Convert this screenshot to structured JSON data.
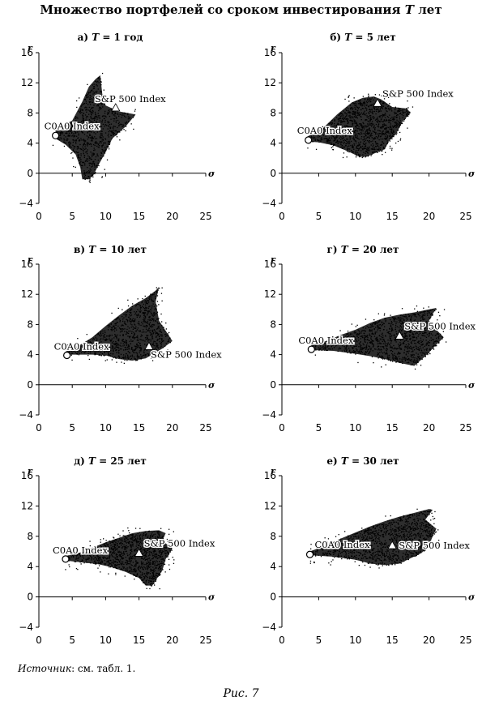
{
  "figure": {
    "title_prefix": "Множество портфелей со сроком инвестирования",
    "title_var": "T",
    "title_suffix": "лет",
    "source_label": "Источник",
    "source_text": ": см. табл. 1.",
    "caption": "Рис. 7"
  },
  "chart_data": [
    {
      "type": "scatter",
      "label": "а)",
      "eq": "= 1 год",
      "xlabel": "σ",
      "ylabel": "r",
      "xlim": [
        0,
        25
      ],
      "ylim": [
        -4,
        16
      ],
      "xticks": [
        0,
        5,
        10,
        15,
        20,
        25
      ],
      "yticks": [
        -4,
        0,
        4,
        8,
        12,
        16
      ],
      "cloud": {
        "tip": [
          2.5,
          5.0
        ],
        "hull": [
          [
            2.5,
            5.8
          ],
          [
            5,
            7
          ],
          [
            6.5,
            9.5
          ],
          [
            7.5,
            11.5
          ],
          [
            8.5,
            12.5
          ],
          [
            9.2,
            13
          ],
          [
            9.5,
            10.5
          ],
          [
            10,
            9
          ],
          [
            12,
            8.2
          ],
          [
            14.5,
            7.8
          ],
          [
            13,
            6.2
          ],
          [
            11,
            4.6
          ],
          [
            10,
            2.8
          ],
          [
            9,
            1.2
          ],
          [
            8.2,
            -0.2
          ],
          [
            7.5,
            -0.8
          ],
          [
            6.5,
            -0.8
          ],
          [
            6.2,
            0.8
          ],
          [
            5.5,
            2.5
          ],
          [
            4,
            3.8
          ],
          [
            2.5,
            4.6
          ]
        ]
      },
      "points": [
        {
          "label": "C0A0 Index",
          "x": 2.5,
          "y": 5.0,
          "marker": "circle",
          "text_pos": "above-left"
        },
        {
          "label": "S&P 500 Index",
          "x": 11.5,
          "y": 8.7,
          "marker": "triangle",
          "text_pos": "above"
        }
      ]
    },
    {
      "type": "scatter",
      "label": "б)",
      "eq": "= 5 лет",
      "xlabel": "σ",
      "ylabel": "r",
      "xlim": [
        0,
        25
      ],
      "ylim": [
        -4,
        16
      ],
      "xticks": [
        0,
        5,
        10,
        15,
        20,
        25
      ],
      "yticks": [
        -4,
        0,
        4,
        8,
        12,
        16
      ],
      "cloud": {
        "tip": [
          3.5,
          4.5
        ],
        "hull": [
          [
            3.5,
            4.9
          ],
          [
            5.5,
            5.9
          ],
          [
            7.5,
            7.8
          ],
          [
            9.5,
            9.4
          ],
          [
            11,
            10
          ],
          [
            12.5,
            10.2
          ],
          [
            13.5,
            9.8
          ],
          [
            15,
            8.8
          ],
          [
            17,
            8.6
          ],
          [
            17.5,
            8
          ],
          [
            16.5,
            7
          ],
          [
            15.5,
            5.2
          ],
          [
            14.5,
            4.2
          ],
          [
            14,
            3.2
          ],
          [
            11.5,
            2.2
          ],
          [
            10.5,
            2.2
          ],
          [
            9,
            2.9
          ],
          [
            7,
            3.7
          ],
          [
            5,
            4.1
          ],
          [
            3.5,
            4.2
          ]
        ]
      },
      "points": [
        {
          "label": "C0A0 Index",
          "x": 3.6,
          "y": 4.4,
          "marker": "circle",
          "text_pos": "above-left"
        },
        {
          "label": "S&P 500 Index",
          "x": 13.0,
          "y": 9.3,
          "marker": "triangle",
          "text_pos": "above-right"
        }
      ]
    },
    {
      "type": "scatter",
      "label": "в)",
      "eq": "= 10 лет",
      "xlabel": "σ",
      "ylabel": "r",
      "xlim": [
        0,
        25
      ],
      "ylim": [
        -4,
        16
      ],
      "xticks": [
        0,
        5,
        10,
        15,
        20,
        25
      ],
      "yticks": [
        -4,
        0,
        4,
        8,
        12,
        16
      ],
      "cloud": {
        "tip": [
          4.0,
          4.0
        ],
        "hull": [
          [
            4,
            4.4
          ],
          [
            6,
            5.2
          ],
          [
            8,
            6.3
          ],
          [
            10,
            7.8
          ],
          [
            12,
            9.2
          ],
          [
            14,
            10.5
          ],
          [
            16,
            11.5
          ],
          [
            17.5,
            12.5
          ],
          [
            18,
            13
          ],
          [
            17.5,
            11
          ],
          [
            18,
            8.5
          ],
          [
            19.5,
            6.5
          ],
          [
            20,
            5.8
          ],
          [
            18.5,
            4.8
          ],
          [
            16,
            3.5
          ],
          [
            14,
            3.2
          ],
          [
            12,
            3.4
          ],
          [
            10,
            3.9
          ],
          [
            8,
            4.0
          ],
          [
            4,
            4.0
          ]
        ]
      },
      "points": [
        {
          "label": "C0A0 Index",
          "x": 4.2,
          "y": 3.9,
          "marker": "circle",
          "text_pos": "above"
        },
        {
          "label": "S&P 500 Index",
          "x": 16.5,
          "y": 5.1,
          "marker": "triangle",
          "text_pos": "below-right"
        }
      ]
    },
    {
      "type": "scatter",
      "label": "г)",
      "eq": "= 20 лет",
      "xlabel": "σ",
      "ylabel": "r",
      "xlim": [
        0,
        25
      ],
      "ylim": [
        -4,
        16
      ],
      "xticks": [
        0,
        5,
        10,
        15,
        20,
        25
      ],
      "yticks": [
        -4,
        0,
        4,
        8,
        12,
        16
      ],
      "cloud": {
        "tip": [
          4.0,
          4.8
        ],
        "hull": [
          [
            4,
            5.3
          ],
          [
            6,
            5.8
          ],
          [
            8,
            6.6
          ],
          [
            10,
            7.3
          ],
          [
            12,
            8.2
          ],
          [
            14,
            8.9
          ],
          [
            16,
            9.3
          ],
          [
            18,
            9.6
          ],
          [
            20,
            10
          ],
          [
            21,
            10.2
          ],
          [
            20,
            8.5
          ],
          [
            21,
            7.3
          ],
          [
            22,
            6.3
          ],
          [
            21,
            5.3
          ],
          [
            19.5,
            3.8
          ],
          [
            18,
            2.5
          ],
          [
            16,
            2.9
          ],
          [
            14,
            3.4
          ],
          [
            12,
            3.8
          ],
          [
            10,
            4.1
          ],
          [
            7,
            4.5
          ],
          [
            4,
            4.6
          ]
        ]
      },
      "points": [
        {
          "label": "C0A0 Index",
          "x": 4.0,
          "y": 4.7,
          "marker": "circle",
          "text_pos": "above"
        },
        {
          "label": "S&P 500 Index",
          "x": 16.0,
          "y": 6.5,
          "marker": "triangle",
          "text_pos": "above-right"
        }
      ]
    },
    {
      "type": "scatter",
      "label": "д)",
      "eq": "= 25 лет",
      "xlabel": "σ",
      "ylabel": "r",
      "xlim": [
        0,
        25
      ],
      "ylim": [
        -4,
        16
      ],
      "xticks": [
        0,
        5,
        10,
        15,
        20,
        25
      ],
      "yticks": [
        -4,
        0,
        4,
        8,
        12,
        16
      ],
      "cloud": {
        "tip": [
          4.0,
          5.0
        ],
        "hull": [
          [
            4,
            5.4
          ],
          [
            6,
            5.8
          ],
          [
            8,
            6.5
          ],
          [
            10,
            7.2
          ],
          [
            12,
            7.8
          ],
          [
            14,
            8.4
          ],
          [
            16,
            8.7
          ],
          [
            18,
            8.8
          ],
          [
            19,
            8.4
          ],
          [
            18.5,
            7.4
          ],
          [
            20,
            6.4
          ],
          [
            19,
            5
          ],
          [
            18.5,
            3.5
          ],
          [
            17,
            1.5
          ],
          [
            16,
            1.5
          ],
          [
            15,
            2.5
          ],
          [
            13,
            3.3
          ],
          [
            11,
            3.9
          ],
          [
            9,
            4.3
          ],
          [
            6,
            4.6
          ],
          [
            4,
            4.8
          ]
        ]
      },
      "points": [
        {
          "label": "C0A0 Index",
          "x": 4.0,
          "y": 5.0,
          "marker": "circle",
          "text_pos": "above"
        },
        {
          "label": "S&P 500 Index",
          "x": 15.0,
          "y": 5.8,
          "marker": "triangle",
          "text_pos": "above-right"
        }
      ]
    },
    {
      "type": "scatter",
      "label": "е)",
      "eq": "= 30 лет",
      "xlabel": "σ",
      "ylabel": "r",
      "xlim": [
        0,
        25
      ],
      "ylim": [
        -4,
        16
      ],
      "xticks": [
        0,
        5,
        10,
        15,
        20,
        25
      ],
      "yticks": [
        -4,
        0,
        4,
        8,
        12,
        16
      ],
      "cloud": {
        "tip": [
          3.8,
          5.6
        ],
        "hull": [
          [
            3.8,
            6
          ],
          [
            6,
            6.8
          ],
          [
            8,
            7.7
          ],
          [
            10,
            8.5
          ],
          [
            12,
            9.3
          ],
          [
            14,
            10
          ],
          [
            16,
            10.6
          ],
          [
            18,
            11.1
          ],
          [
            20,
            11.6
          ],
          [
            20.5,
            11.5
          ],
          [
            19.5,
            10.2
          ],
          [
            21,
            9
          ],
          [
            20.5,
            8
          ],
          [
            20,
            6.8
          ],
          [
            19,
            5.8
          ],
          [
            16,
            4.4
          ],
          [
            14,
            4.2
          ],
          [
            12,
            4.4
          ],
          [
            10,
            4.9
          ],
          [
            7,
            5.3
          ],
          [
            3.8,
            5.5
          ]
        ]
      },
      "points": [
        {
          "label": "C0A0 Index",
          "x": 3.8,
          "y": 5.6,
          "marker": "circle",
          "text_pos": "above-right"
        },
        {
          "label": "S&P 500 Index",
          "x": 15.0,
          "y": 6.8,
          "marker": "triangle",
          "text_pos": "right"
        }
      ]
    }
  ]
}
